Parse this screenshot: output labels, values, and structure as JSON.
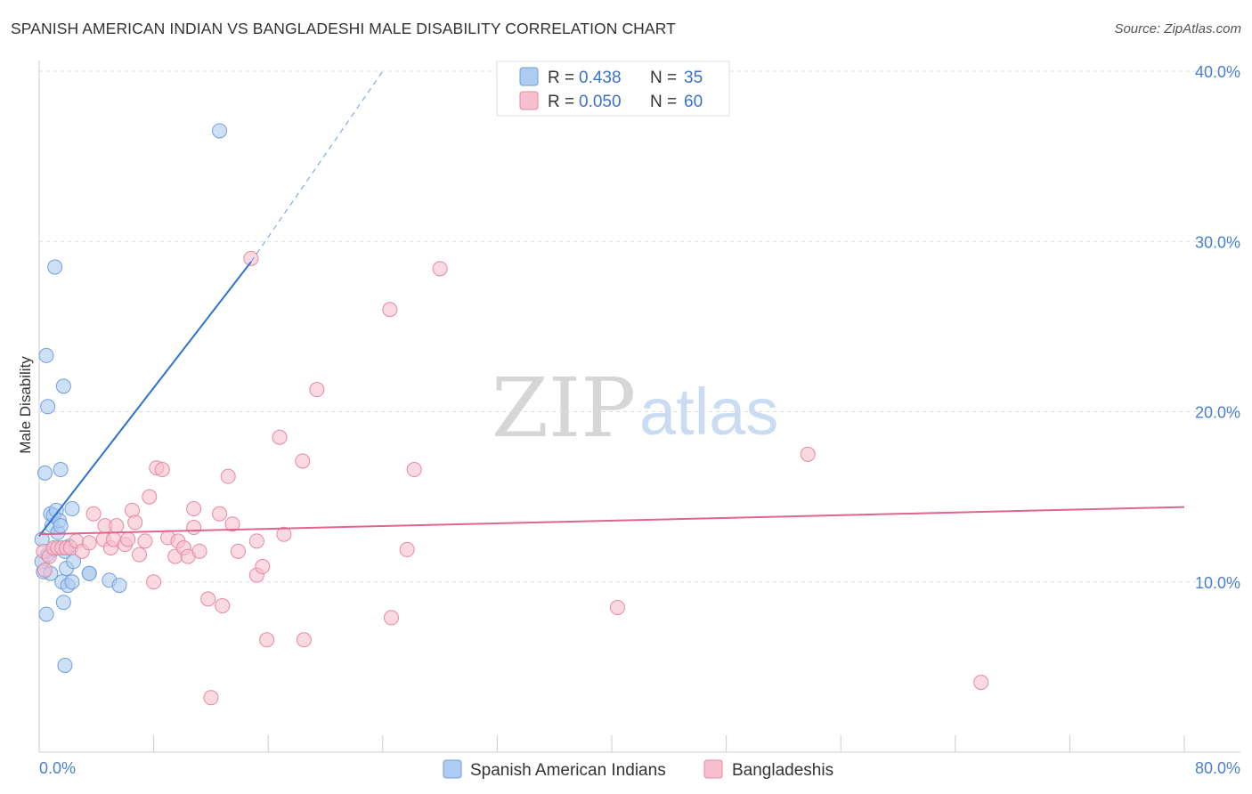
{
  "header": {
    "title": "SPANISH AMERICAN INDIAN VS BANGLADESHI MALE DISABILITY CORRELATION CHART",
    "source": "Source: ZipAtlas.com"
  },
  "watermark": {
    "zip": "ZIP",
    "atlas": "atlas"
  },
  "legend_box": {
    "rows": [
      {
        "r_label": "R =",
        "r_value": "0.438",
        "n_label": "N =",
        "n_value": "35",
        "color": "#aecbf0"
      },
      {
        "r_label": "R =",
        "r_value": "0.050",
        "n_label": "N =",
        "n_value": "60",
        "color": "#f7bfd0"
      }
    ]
  },
  "chart_data": {
    "type": "scatter",
    "title": "SPANISH AMERICAN INDIAN VS BANGLADESHI MALE DISABILITY CORRELATION CHART",
    "xlabel": "",
    "ylabel": "Male Disability",
    "xlim": [
      0,
      80
    ],
    "ylim": [
      0,
      40
    ],
    "x_tick_labels": [
      "0.0%",
      "80.0%"
    ],
    "y_ticks": [
      10,
      20,
      30,
      40
    ],
    "y_tick_labels": [
      "10.0%",
      "20.0%",
      "30.0%",
      "40.0%"
    ],
    "grid": true,
    "legend_position": "bottom-center",
    "series": [
      {
        "name": "Spanish American Indians",
        "color": "#aecbf0",
        "edge": "#6f9fde",
        "trend_color": "#2f73d2",
        "trend": {
          "x0": 0,
          "y0": 12.7,
          "x1": 14.8,
          "y1": 28.8,
          "dashed_x1": 24.0,
          "dashed_y1": 40.0
        },
        "points": [
          [
            0.2,
            12.5
          ],
          [
            0.2,
            11.2
          ],
          [
            0.3,
            10.6
          ],
          [
            0.4,
            16.4
          ],
          [
            0.5,
            23.3
          ],
          [
            0.5,
            8.1
          ],
          [
            0.6,
            20.3
          ],
          [
            0.6,
            11.6
          ],
          [
            0.8,
            14.0
          ],
          [
            0.8,
            10.5
          ],
          [
            0.9,
            13.3
          ],
          [
            1.0,
            13.9
          ],
          [
            1.0,
            11.9
          ],
          [
            1.1,
            28.5
          ],
          [
            1.2,
            14.2
          ],
          [
            1.3,
            12.9
          ],
          [
            1.4,
            13.6
          ],
          [
            1.5,
            13.3
          ],
          [
            1.5,
            16.6
          ],
          [
            1.6,
            10.0
          ],
          [
            1.7,
            8.8
          ],
          [
            1.7,
            21.5
          ],
          [
            1.8,
            5.1
          ],
          [
            1.8,
            11.8
          ],
          [
            1.9,
            10.8
          ],
          [
            2.0,
            9.8
          ],
          [
            2.1,
            12.1
          ],
          [
            2.3,
            14.3
          ],
          [
            2.3,
            10.0
          ],
          [
            2.4,
            11.2
          ],
          [
            3.5,
            10.5
          ],
          [
            3.5,
            10.5
          ],
          [
            4.9,
            10.1
          ],
          [
            5.6,
            9.8
          ],
          [
            12.6,
            36.5
          ]
        ]
      },
      {
        "name": "Bangladeshis",
        "color": "#f7bfd0",
        "edge": "#e7889f",
        "trend_color": "#e0648c",
        "trend": {
          "x0": 0,
          "y0": 12.8,
          "x1": 80,
          "y1": 14.4
        },
        "points": [
          [
            0.3,
            11.8
          ],
          [
            0.4,
            10.7
          ],
          [
            0.7,
            11.5
          ],
          [
            1.0,
            12.0
          ],
          [
            1.3,
            12.0
          ],
          [
            1.6,
            12.0
          ],
          [
            1.9,
            12.0
          ],
          [
            2.2,
            12.0
          ],
          [
            2.6,
            12.4
          ],
          [
            3.0,
            11.8
          ],
          [
            3.5,
            12.3
          ],
          [
            3.8,
            14.0
          ],
          [
            4.5,
            12.5
          ],
          [
            4.6,
            13.3
          ],
          [
            5.0,
            12.0
          ],
          [
            5.2,
            12.5
          ],
          [
            5.4,
            13.3
          ],
          [
            6.0,
            12.2
          ],
          [
            6.2,
            12.5
          ],
          [
            6.5,
            14.2
          ],
          [
            6.7,
            13.5
          ],
          [
            7.0,
            11.6
          ],
          [
            7.4,
            12.4
          ],
          [
            7.7,
            15.0
          ],
          [
            8.0,
            10.0
          ],
          [
            8.2,
            16.7
          ],
          [
            8.6,
            16.6
          ],
          [
            9.0,
            12.6
          ],
          [
            9.5,
            11.5
          ],
          [
            9.7,
            12.4
          ],
          [
            10.1,
            12.0
          ],
          [
            10.4,
            11.5
          ],
          [
            10.8,
            13.2
          ],
          [
            10.8,
            14.3
          ],
          [
            11.2,
            11.8
          ],
          [
            11.8,
            9.0
          ],
          [
            12.0,
            3.2
          ],
          [
            12.6,
            14.0
          ],
          [
            12.8,
            8.6
          ],
          [
            13.2,
            16.2
          ],
          [
            13.5,
            13.4
          ],
          [
            13.9,
            11.8
          ],
          [
            14.8,
            29.0
          ],
          [
            15.2,
            12.4
          ],
          [
            15.2,
            10.4
          ],
          [
            15.6,
            10.9
          ],
          [
            15.9,
            6.6
          ],
          [
            16.8,
            18.5
          ],
          [
            17.1,
            12.8
          ],
          [
            18.4,
            17.1
          ],
          [
            18.5,
            6.6
          ],
          [
            19.4,
            21.3
          ],
          [
            24.5,
            26.0
          ],
          [
            24.6,
            7.9
          ],
          [
            25.7,
            11.9
          ],
          [
            26.2,
            16.6
          ],
          [
            28.0,
            28.4
          ],
          [
            40.4,
            8.5
          ],
          [
            53.7,
            17.5
          ],
          [
            65.8,
            4.1
          ]
        ]
      }
    ]
  }
}
